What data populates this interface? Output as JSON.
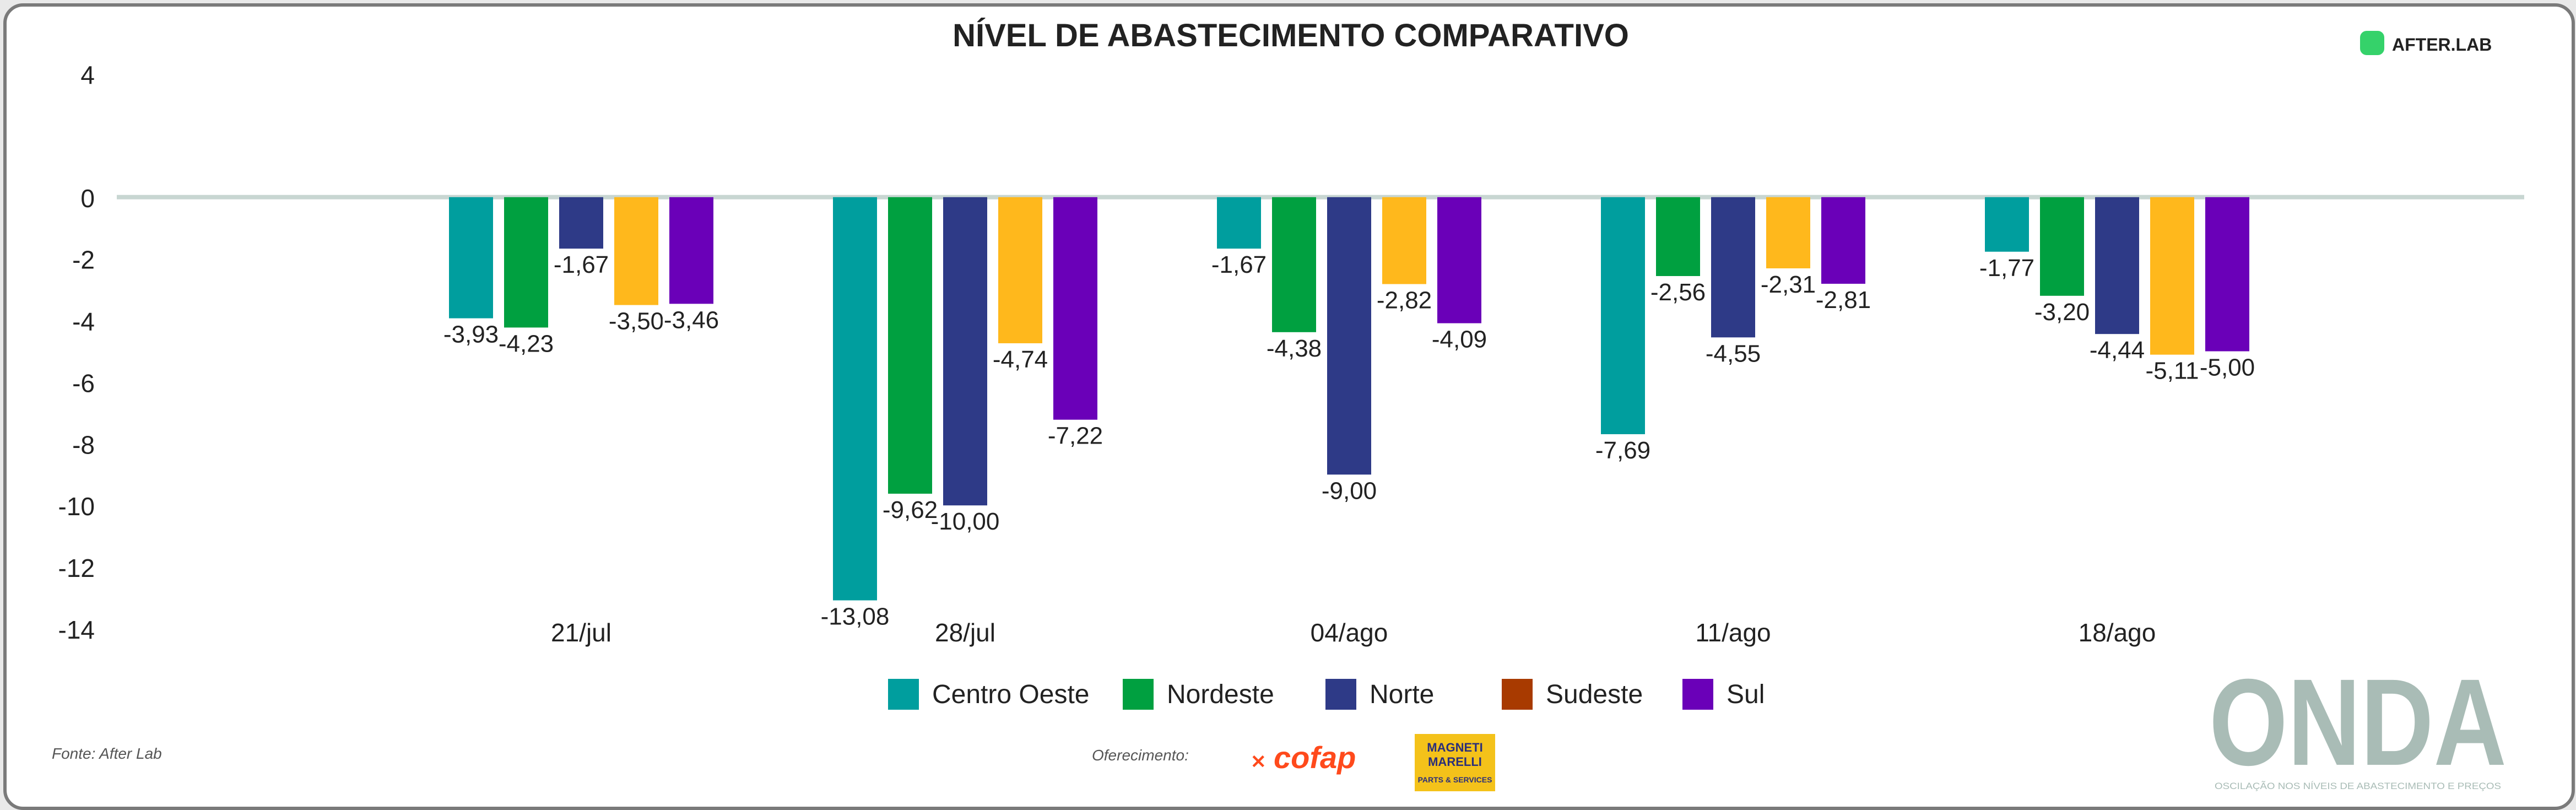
{
  "chart_data": {
    "type": "bar",
    "title": "NÍVEL DE ABASTECIMENTO COMPARATIVO",
    "categories": [
      "21/jul",
      "28/jul",
      "04/ago",
      "11/ago",
      "18/ago"
    ],
    "series": [
      {
        "name": "Centro Oeste",
        "color": "#009e9e",
        "values": [
          -3.93,
          -13.08,
          -1.67,
          -7.69,
          -1.77
        ],
        "labels": [
          "-3,93",
          "-13,08",
          "-1,67",
          "-7,69",
          "-1,77"
        ]
      },
      {
        "name": "Nordeste",
        "color": "#00a040",
        "values": [
          -4.23,
          -9.62,
          -4.38,
          -2.56,
          -3.2
        ],
        "labels": [
          "-4,23",
          "-9,62",
          "-4,38",
          "-2,56",
          "-3,20"
        ]
      },
      {
        "name": "Norte",
        "color": "#2e3a87",
        "values": [
          -1.67,
          -10.0,
          -9.0,
          -4.55,
          -4.44
        ],
        "labels": [
          "-1,67",
          "-10,00",
          "-9,00",
          "-4,55",
          "-4,44"
        ]
      },
      {
        "name": "Sudeste",
        "color": "#ffb81c",
        "legend_color": "#a83a00",
        "values": [
          -3.5,
          -4.74,
          -2.82,
          -2.31,
          -5.11
        ],
        "labels": [
          "-3,50",
          "-4,74",
          "-2,82",
          "-2,31",
          "-5,11"
        ]
      },
      {
        "name": "Sul",
        "color": "#6a00b8",
        "values": [
          -3.46,
          -7.22,
          -4.09,
          -2.81,
          -5.0
        ],
        "labels": [
          "-3,46",
          "-7,22",
          "-4,09",
          "-2,81",
          "-5,00"
        ]
      }
    ],
    "yticks": [
      4,
      0,
      -2,
      -4,
      -6,
      -8,
      -10,
      -12,
      -14
    ],
    "ylim": [
      -14,
      4
    ],
    "legend_position": "bottom-center",
    "grid": false
  },
  "source": "Fonte: After Lab",
  "sponsors_label": "Oferecimento:",
  "brand": {
    "afterlab": "AFTER.LAB",
    "cofap": "cofap",
    "magneti_line1": "MAGNETI",
    "magneti_line2": "MARELLI",
    "magneti_sub": "PARTS & SERVICES",
    "onda": "ONDA",
    "onda_sub": "OSCILAÇÃO NOS NÍVEIS DE ABASTECIMENTO E PREÇOS"
  },
  "colors": {
    "zero_line": "#c8d6d2",
    "onda": "#a9bcb6",
    "afterlab_green": "#35d26a",
    "magneti_yellow": "#f4c21a"
  }
}
